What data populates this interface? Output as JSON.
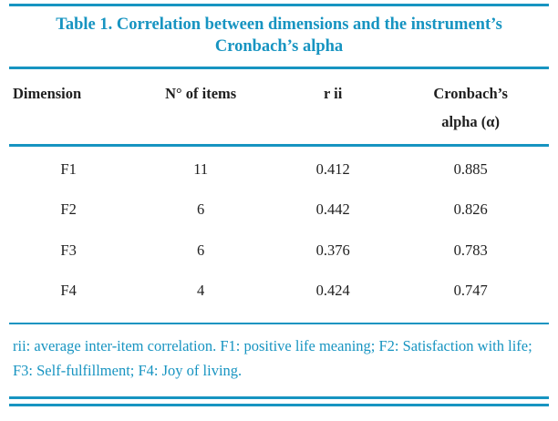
{
  "title": "Table 1. Correlation between dimensions and the instrument’s Cronbach’s alpha",
  "table": {
    "headers": [
      "Dimension",
      "N° of items",
      "r ii",
      "Cronbach’s alpha (α)"
    ],
    "rows": [
      [
        "F1",
        "11",
        "0.412",
        "0.885"
      ],
      [
        "F2",
        "6",
        "0.442",
        "0.826"
      ],
      [
        "F3",
        "6",
        "0.376",
        "0.783"
      ],
      [
        "F4",
        "4",
        "0.424",
        "0.747"
      ]
    ]
  },
  "footnote": "rii: average inter-item correlation. F1: positive life meaning; F2: Satisfaction with life; F3: Self-fulfillment; F4: Joy of living.",
  "colors": {
    "accent": "#1794c1",
    "text": "#1f1f1f",
    "background": "#ffffff"
  }
}
